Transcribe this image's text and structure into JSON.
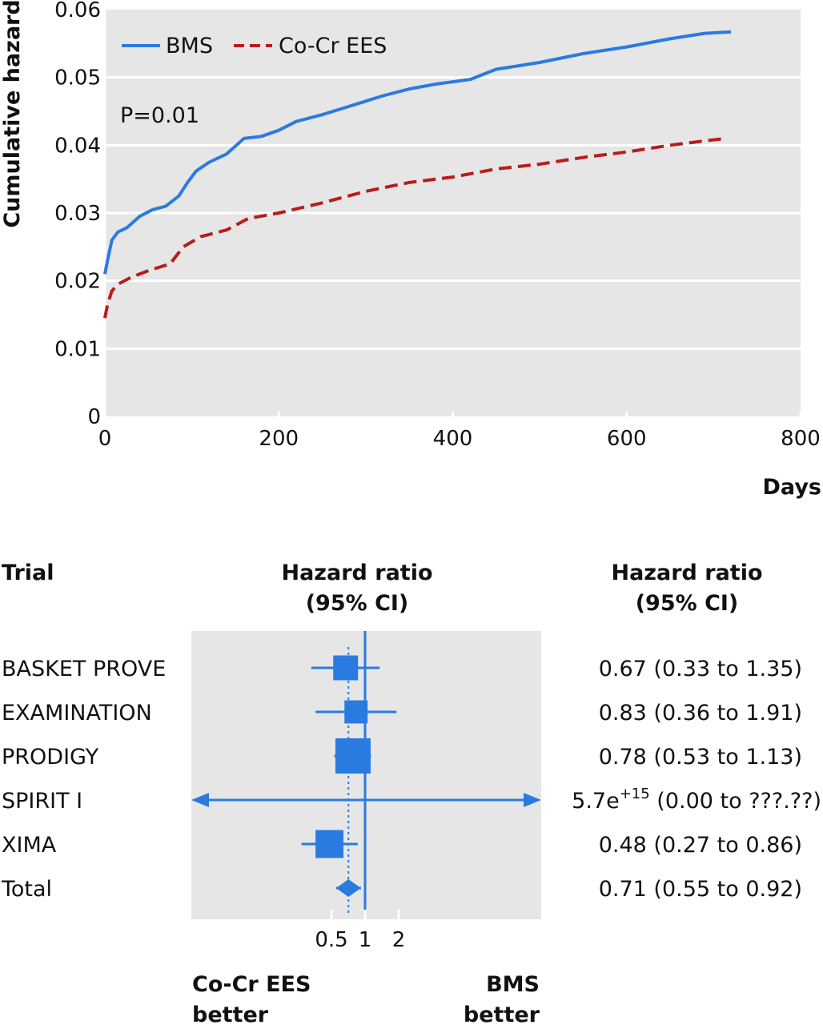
{
  "chart_data": [
    {
      "type": "line",
      "ylabel": "Cumulative hazard",
      "xlabel": "Days",
      "xlim": [
        0,
        800
      ],
      "ylim": [
        0,
        0.06
      ],
      "x_ticks": [
        "0",
        "200",
        "400",
        "600",
        "800"
      ],
      "y_ticks": [
        "0",
        "0.01",
        "0.02",
        "0.03",
        "0.04",
        "0.05",
        "0.06"
      ],
      "grid": true,
      "legend_position": "top-left",
      "annotation": "P=0.01",
      "series": [
        {
          "name": "BMS",
          "color": "#2a7be0",
          "style": "solid",
          "points": [
            [
              0,
              0.021
            ],
            [
              3,
              0.023
            ],
            [
              8,
              0.026
            ],
            [
              15,
              0.0272
            ],
            [
              25,
              0.0278
            ],
            [
              40,
              0.0295
            ],
            [
              55,
              0.0305
            ],
            [
              70,
              0.031
            ],
            [
              85,
              0.0325
            ],
            [
              95,
              0.0345
            ],
            [
              105,
              0.0362
            ],
            [
              120,
              0.0375
            ],
            [
              140,
              0.0387
            ],
            [
              160,
              0.041
            ],
            [
              180,
              0.0413
            ],
            [
              200,
              0.0422
            ],
            [
              220,
              0.0435
            ],
            [
              250,
              0.0445
            ],
            [
              280,
              0.0457
            ],
            [
              300,
              0.0465
            ],
            [
              320,
              0.0473
            ],
            [
              350,
              0.0483
            ],
            [
              380,
              0.049
            ],
            [
              420,
              0.0497
            ],
            [
              450,
              0.0512
            ],
            [
              500,
              0.0522
            ],
            [
              550,
              0.0535
            ],
            [
              600,
              0.0545
            ],
            [
              650,
              0.0557
            ],
            [
              690,
              0.0565
            ],
            [
              720,
              0.0567
            ]
          ]
        },
        {
          "name": "Co-Cr EES",
          "color": "#b81c1c",
          "style": "dashed",
          "points": [
            [
              0,
              0.0145
            ],
            [
              3,
              0.0165
            ],
            [
              8,
              0.0185
            ],
            [
              15,
              0.0195
            ],
            [
              30,
              0.0205
            ],
            [
              50,
              0.0215
            ],
            [
              75,
              0.0225
            ],
            [
              90,
              0.025
            ],
            [
              110,
              0.0265
            ],
            [
              140,
              0.0275
            ],
            [
              165,
              0.0292
            ],
            [
              200,
              0.03
            ],
            [
              250,
              0.0315
            ],
            [
              300,
              0.0332
            ],
            [
              350,
              0.0345
            ],
            [
              400,
              0.0353
            ],
            [
              450,
              0.0365
            ],
            [
              500,
              0.0372
            ],
            [
              550,
              0.0382
            ],
            [
              600,
              0.039
            ],
            [
              650,
              0.04
            ],
            [
              700,
              0.0408
            ],
            [
              715,
              0.041
            ]
          ]
        }
      ]
    },
    {
      "type": "forest",
      "col_trial": "Trial",
      "col_hr_mid": [
        "Hazard ratio",
        "(95% CI)"
      ],
      "col_hr_right": [
        "Hazard ratio",
        "(95% CI)"
      ],
      "x_scale": "log",
      "x_ticks": [
        "0.5",
        "1",
        "2"
      ],
      "left_caption": [
        "Co-Cr EES",
        "better"
      ],
      "right_caption": [
        "BMS",
        "better"
      ],
      "color": "#2a7be0",
      "rows": [
        {
          "trial": "BASKET PROVE",
          "hr": 0.67,
          "lo": 0.33,
          "hi": 1.35,
          "text": "0.67 (0.33 to 1.35)",
          "box": 0.5
        },
        {
          "trial": "EXAMINATION",
          "hr": 0.83,
          "lo": 0.36,
          "hi": 1.91,
          "text": "0.83 (0.36 to 1.91)",
          "box": 0.42
        },
        {
          "trial": "PRODIGY",
          "hr": 0.78,
          "lo": 0.53,
          "hi": 1.13,
          "text": "0.78 (0.53 to 1.13)",
          "box": 1.0
        },
        {
          "trial": "SPIRIT I",
          "hr": null,
          "lo": null,
          "hi": null,
          "text_main": "5.7e",
          "text_sup": "+15",
          "text_rest": " (0.00 to ???.??)",
          "arrows": true
        },
        {
          "trial": "XIMA",
          "hr": 0.48,
          "lo": 0.27,
          "hi": 0.86,
          "text": "0.48 (0.27 to 0.86)",
          "box": 0.65
        },
        {
          "trial": "Total",
          "hr": 0.71,
          "lo": 0.55,
          "hi": 0.92,
          "text": "0.71 (0.55 to 0.92)",
          "diamond": true
        }
      ]
    }
  ]
}
